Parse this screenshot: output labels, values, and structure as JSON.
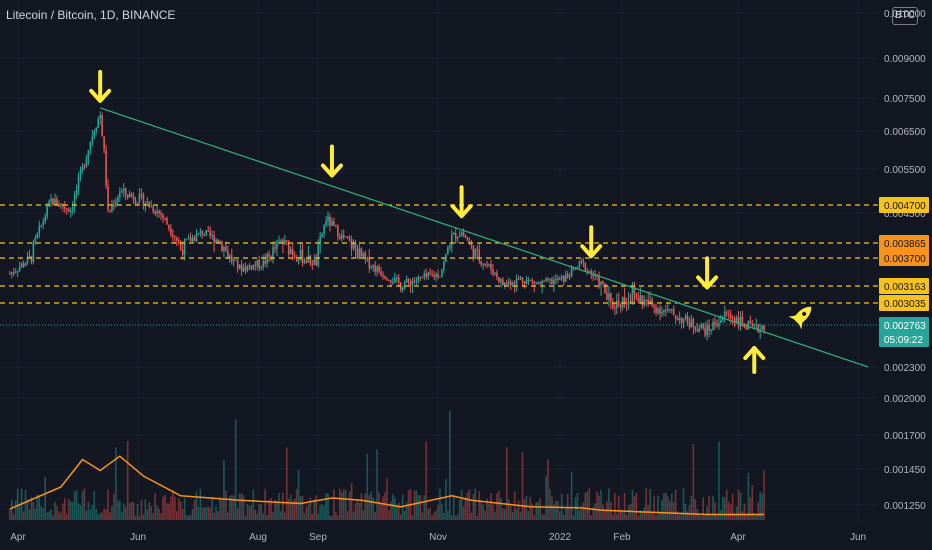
{
  "header": {
    "title": "Litecoin / Bitcoin, 1D, BINANCE",
    "currency_badge": "BTC"
  },
  "colors": {
    "bg": "#131722",
    "grid": "#1e222d",
    "up": "#26a69a",
    "down": "#ef5350",
    "trendline": "#2fa878",
    "level": "#f7c31a",
    "volume_ma": "#f7931a",
    "arrow": "#ffeb3b",
    "axis_text": "#b2b5be",
    "last_price": "#26a69a"
  },
  "chart_data": {
    "type": "candlestick",
    "x_axis": {
      "tick_labels": [
        "Apr",
        "Jun",
        "Aug",
        "Sep",
        "Nov",
        "2022",
        "Feb",
        "Apr",
        "Jun"
      ]
    },
    "y_axis": {
      "tick_labels": [
        "0.010000",
        "0.009000",
        "0.007500",
        "0.006500",
        "0.005500",
        "0.004500",
        "0.002300",
        "0.002000",
        "0.001700",
        "0.001450",
        "0.001250"
      ]
    },
    "horizontal_levels": [
      {
        "value": "0.004700",
        "style": "dashed",
        "label_color": "#f7c31a"
      },
      {
        "value": "0.003865",
        "style": "dashed",
        "label_color": "#f7931a"
      },
      {
        "value": "0.003700",
        "style": "dashed",
        "label_color": "#f7931a"
      },
      {
        "value": "0.003163",
        "style": "dashed",
        "label_color": "#f7c31a"
      },
      {
        "value": "0.003035",
        "style": "dashed",
        "label_color": "#f7c31a"
      }
    ],
    "last_price": {
      "value": "0.002763",
      "countdown": "05:09:22"
    },
    "trendline": {
      "from": {
        "date": "2021-05-10",
        "price": 0.0072
      },
      "to": {
        "date": "2022-06-05",
        "price": 0.0023
      }
    },
    "price_path": [
      [
        "2021-03-25",
        0.0034
      ],
      [
        "2021-04-05",
        0.0037
      ],
      [
        "2021-04-15",
        0.0048
      ],
      [
        "2021-04-25",
        0.0046
      ],
      [
        "2021-05-01",
        0.0055
      ],
      [
        "2021-05-07",
        0.0066
      ],
      [
        "2021-05-10",
        0.007
      ],
      [
        "2021-05-12",
        0.0059
      ],
      [
        "2021-05-14",
        0.0045
      ],
      [
        "2021-05-20",
        0.005
      ],
      [
        "2021-06-01",
        0.0048
      ],
      [
        "2021-06-10",
        0.0045
      ],
      [
        "2021-06-20",
        0.0038
      ],
      [
        "2021-07-01",
        0.0041
      ],
      [
        "2021-07-10",
        0.0039
      ],
      [
        "2021-07-20",
        0.0035
      ],
      [
        "2021-08-01",
        0.0036
      ],
      [
        "2021-08-10",
        0.0039
      ],
      [
        "2021-08-20",
        0.0037
      ],
      [
        "2021-08-28",
        0.0036
      ],
      [
        "2021-09-02",
        0.0044
      ],
      [
        "2021-09-10",
        0.004
      ],
      [
        "2021-09-20",
        0.0037
      ],
      [
        "2021-10-01",
        0.0034
      ],
      [
        "2021-10-10",
        0.0032
      ],
      [
        "2021-10-20",
        0.0033
      ],
      [
        "2021-10-30",
        0.0034
      ],
      [
        "2021-11-05",
        0.004
      ],
      [
        "2021-11-10",
        0.0041
      ],
      [
        "2021-11-15",
        0.0038
      ],
      [
        "2021-11-25",
        0.0035
      ],
      [
        "2021-12-01",
        0.0032
      ],
      [
        "2021-12-10",
        0.0033
      ],
      [
        "2021-12-20",
        0.0032
      ],
      [
        "2022-01-01",
        0.0033
      ],
      [
        "2022-01-10",
        0.0036
      ],
      [
        "2022-01-15",
        0.0034
      ],
      [
        "2022-01-25",
        0.003
      ],
      [
        "2022-02-05",
        0.0031
      ],
      [
        "2022-02-15",
        0.003
      ],
      [
        "2022-02-25",
        0.0029
      ],
      [
        "2022-03-05",
        0.0028
      ],
      [
        "2022-03-15",
        0.0027
      ],
      [
        "2022-03-25",
        0.0029
      ],
      [
        "2022-04-01",
        0.0028
      ],
      [
        "2022-04-08",
        0.0027
      ],
      [
        "2022-04-13",
        0.002763
      ]
    ],
    "volume_ma_path": [
      [
        "2021-03-25",
        0.1
      ],
      [
        "2021-04-20",
        0.3
      ],
      [
        "2021-05-01",
        0.55
      ],
      [
        "2021-05-10",
        0.45
      ],
      [
        "2021-05-20",
        0.58
      ],
      [
        "2021-06-01",
        0.4
      ],
      [
        "2021-06-20",
        0.22
      ],
      [
        "2021-07-20",
        0.18
      ],
      [
        "2021-08-20",
        0.15
      ],
      [
        "2021-09-05",
        0.2
      ],
      [
        "2021-09-20",
        0.18
      ],
      [
        "2021-10-10",
        0.12
      ],
      [
        "2021-11-05",
        0.22
      ],
      [
        "2021-11-15",
        0.18
      ],
      [
        "2021-12-15",
        0.12
      ],
      [
        "2022-01-10",
        0.11
      ],
      [
        "2022-01-20",
        0.09
      ],
      [
        "2022-02-15",
        0.07
      ],
      [
        "2022-03-15",
        0.05
      ],
      [
        "2022-04-13",
        0.05
      ]
    ],
    "annotations": {
      "down_arrows": [
        {
          "date": "2021-05-10",
          "price": 0.0072
        },
        {
          "date": "2021-09-05",
          "price": 0.0052
        },
        {
          "date": "2021-11-10",
          "price": 0.0043
        },
        {
          "date": "2022-01-15",
          "price": 0.0036
        },
        {
          "date": "2022-03-15",
          "price": 0.0031
        }
      ],
      "up_arrow": {
        "date": "2022-04-08",
        "price": 0.0025
      },
      "rocket": {
        "date": "2022-04-30",
        "price": 0.003
      }
    }
  }
}
